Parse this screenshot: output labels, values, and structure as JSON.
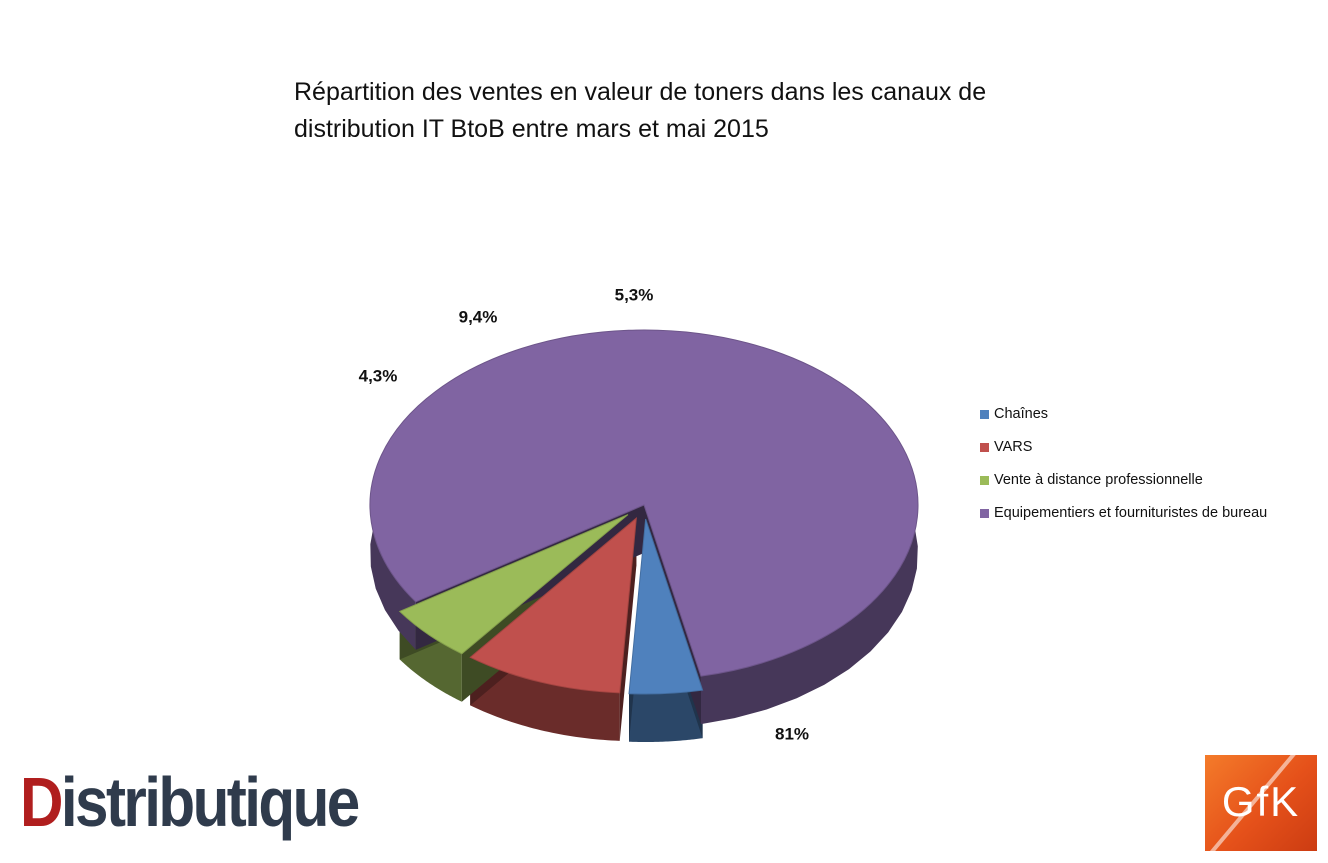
{
  "chart_data": {
    "type": "pie",
    "title_lines": [
      "Répartition des ventes en valeur de toners dans les canaux de",
      "distribution IT BtoB entre mars et mai 2015"
    ],
    "slices": [
      {
        "name": "Chaînes",
        "value": 4.3,
        "label": "4,3%",
        "color": "#4f81bd",
        "exploded": true
      },
      {
        "name": "VARS",
        "value": 9.4,
        "label": "9,4%",
        "color": "#c0504d",
        "exploded": true
      },
      {
        "name": "Vente à distance professionnelle",
        "value": 5.3,
        "label": "5,3%",
        "color": "#9bbb59",
        "exploded": true
      },
      {
        "name": "Equipementiers et fournituristes de bureau",
        "value": 81,
        "label": "81%",
        "color": "#8064a2",
        "exploded": false
      }
    ],
    "legend_position": "right",
    "style": "3d"
  },
  "logos": {
    "distributique": {
      "first": "D",
      "rest": "istributique"
    },
    "gfk": {
      "text": "GfK"
    }
  }
}
